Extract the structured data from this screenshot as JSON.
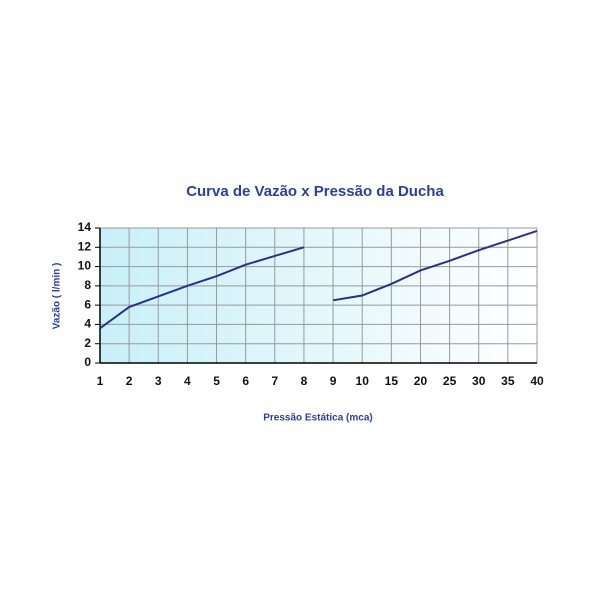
{
  "chart_data": {
    "type": "line",
    "title": "Curva de Vazão x Pressão da Ducha",
    "x_label": "Pressão Estática (mca)",
    "y_label": "Vazão  ( l/min )",
    "categories": [
      "1",
      "2",
      "3",
      "4",
      "5",
      "6",
      "7",
      "8",
      "9",
      "10",
      "15",
      "20",
      "25",
      "30",
      "35",
      "40"
    ],
    "series": [
      {
        "color": "#2b2f8c",
        "values": [
          3.6,
          5.8,
          6.9,
          8.0,
          9.0,
          10.2,
          11.1,
          12.0,
          null,
          null,
          null,
          null,
          null,
          null,
          null,
          null
        ]
      },
      {
        "color": "#2b2f8c",
        "values": [
          null,
          null,
          null,
          null,
          null,
          null,
          null,
          null,
          6.5,
          7.0,
          8.2,
          9.6,
          10.6,
          11.7,
          12.7,
          13.7
        ]
      }
    ],
    "ylim": [
      0,
      14
    ],
    "yticks": [
      0,
      2,
      4,
      6,
      8,
      10,
      12,
      14
    ],
    "grid": true
  }
}
